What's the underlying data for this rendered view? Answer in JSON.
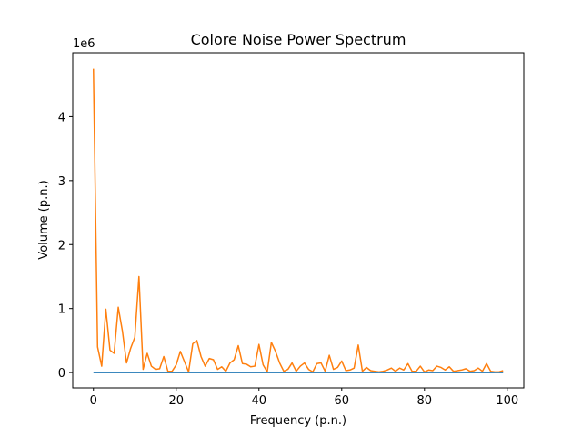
{
  "chart_data": {
    "type": "line",
    "title": "Colore Noise Power Spectrum",
    "xlabel": "Frequency (p.n.)",
    "ylabel": "Volume (p.n.)",
    "y_offset_label": "1e6",
    "xlim": [
      -5,
      104
    ],
    "ylim": [
      -0.24,
      5.0
    ],
    "y_scale": 1000000,
    "grid": false,
    "legend": "none",
    "xticks": [
      0,
      20,
      40,
      60,
      80,
      100
    ],
    "xtick_labels": [
      "0",
      "20",
      "40",
      "60",
      "80",
      "100"
    ],
    "yticks": [
      0,
      1,
      2,
      3,
      4
    ],
    "ytick_labels": [
      "0",
      "1",
      "2",
      "3",
      "4"
    ],
    "series": [
      {
        "color": "#1f77b4",
        "x": [
          0,
          99
        ],
        "y": [
          0,
          0
        ]
      },
      {
        "color": "#ff7f0e",
        "x": [
          0,
          1,
          2,
          3,
          4,
          5,
          6,
          7,
          8,
          9,
          10,
          11,
          12,
          13,
          14,
          15,
          16,
          17,
          18,
          19,
          20,
          21,
          22,
          23,
          24,
          25,
          26,
          27,
          28,
          29,
          30,
          31,
          32,
          33,
          34,
          35,
          36,
          37,
          38,
          39,
          40,
          41,
          42,
          43,
          44,
          45,
          46,
          47,
          48,
          49,
          50,
          51,
          52,
          53,
          54,
          55,
          56,
          57,
          58,
          59,
          60,
          61,
          62,
          63,
          64,
          65,
          66,
          67,
          68,
          69,
          70,
          71,
          72,
          73,
          74,
          75,
          76,
          77,
          78,
          79,
          80,
          81,
          82,
          83,
          84,
          85,
          86,
          87,
          88,
          89,
          90,
          91,
          92,
          93,
          94,
          95,
          96,
          97,
          98,
          99
        ],
        "y": [
          4.75,
          0.4,
          0.1,
          0.99,
          0.35,
          0.3,
          1.02,
          0.65,
          0.15,
          0.38,
          0.55,
          1.5,
          0.05,
          0.3,
          0.1,
          0.05,
          0.06,
          0.25,
          0.02,
          0.02,
          0.12,
          0.33,
          0.17,
          0.01,
          0.45,
          0.5,
          0.25,
          0.1,
          0.22,
          0.2,
          0.05,
          0.09,
          0.02,
          0.15,
          0.2,
          0.42,
          0.14,
          0.13,
          0.09,
          0.1,
          0.44,
          0.12,
          0.01,
          0.47,
          0.33,
          0.15,
          0.02,
          0.05,
          0.15,
          0.02,
          0.1,
          0.15,
          0.05,
          0.01,
          0.14,
          0.15,
          0.02,
          0.27,
          0.05,
          0.08,
          0.18,
          0.03,
          0.04,
          0.07,
          0.43,
          0.02,
          0.08,
          0.03,
          0.02,
          0.01,
          0.02,
          0.04,
          0.07,
          0.02,
          0.07,
          0.04,
          0.14,
          0.02,
          0.02,
          0.1,
          0.01,
          0.04,
          0.03,
          0.1,
          0.08,
          0.04,
          0.09,
          0.02,
          0.03,
          0.04,
          0.06,
          0.02,
          0.03,
          0.07,
          0.02,
          0.14,
          0.02,
          0.01,
          0.01,
          0.03
        ]
      }
    ]
  }
}
